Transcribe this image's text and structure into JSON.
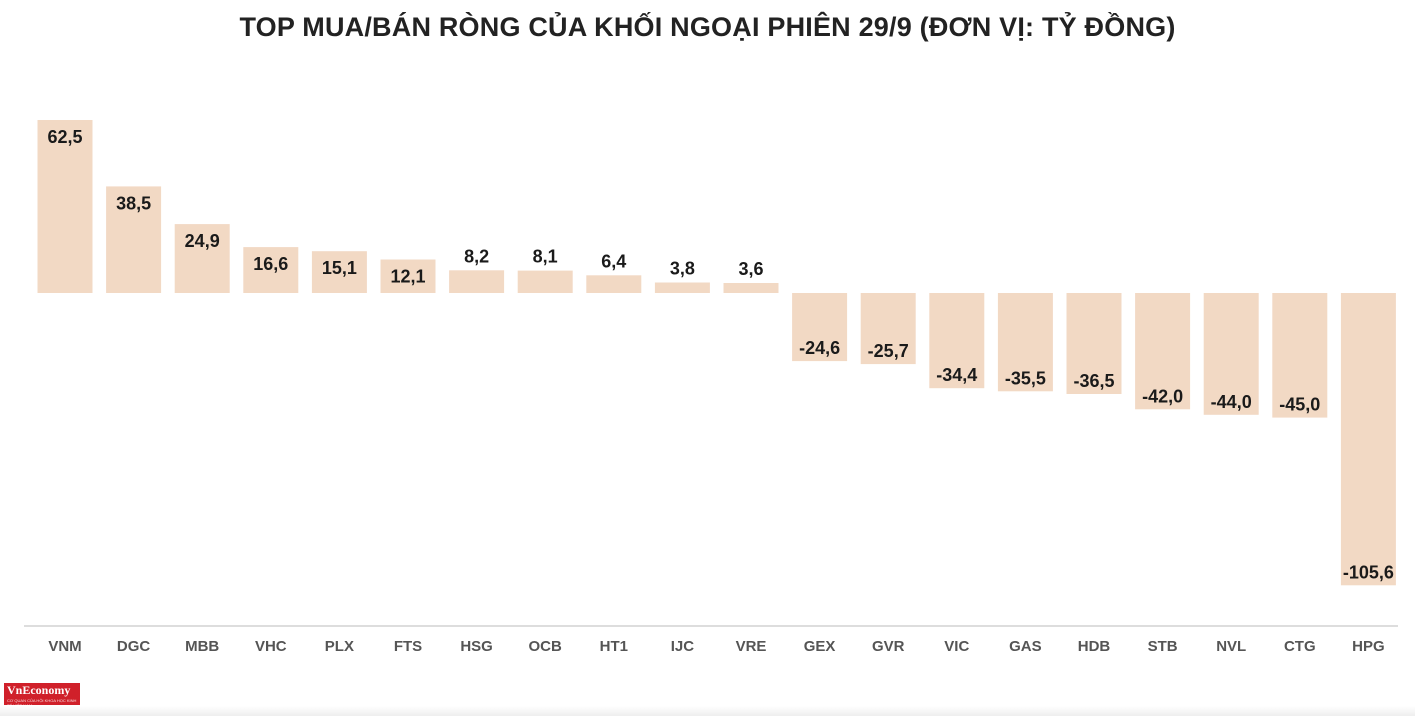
{
  "title": "TOP MUA/BÁN RÒNG CỦA KHỐI NGOẠI PHIÊN 29/9 (ĐƠN VỊ: TỶ ĐỒNG)",
  "logo": {
    "text": "VnEconomy",
    "subtext": "CƠ QUAN CỦA HỘI KHOA HỌC KINH TẾ VIỆT NAM"
  },
  "colors": {
    "bar": "#f2d9c4",
    "axis": "#bbbbbb",
    "label": "#1a1a1a",
    "category": "#555555",
    "title": "#222222"
  },
  "chart_data": {
    "type": "bar",
    "title": "TOP MUA/BÁN RÒNG CỦA KHỐI NGOẠI PHIÊN 29/9 (ĐƠN VỊ: TỶ ĐỒNG)",
    "categories": [
      "VNM",
      "DGC",
      "MBB",
      "VHC",
      "PLX",
      "FTS",
      "HSG",
      "OCB",
      "HT1",
      "IJC",
      "VRE",
      "GEX",
      "GVR",
      "VIC",
      "GAS",
      "HDB",
      "STB",
      "NVL",
      "CTG",
      "HPG"
    ],
    "values": [
      62.5,
      38.5,
      24.9,
      16.6,
      15.1,
      12.1,
      8.2,
      8.1,
      6.4,
      3.8,
      3.6,
      -24.6,
      -25.7,
      -34.4,
      -35.5,
      -36.5,
      -42.0,
      -44.0,
      -45.0,
      -105.6
    ],
    "value_labels": [
      "62,5",
      "38,5",
      "24,9",
      "16,6",
      "15,1",
      "12,1",
      "8,2",
      "8,1",
      "6,4",
      "3,8",
      "3,6",
      "-24,6",
      "-25,7",
      "-34,4",
      "-35,5",
      "-36,5",
      "-42,0",
      "-44,0",
      "-45,0",
      "-105,6"
    ],
    "xlabel": "",
    "ylabel": "",
    "ylim": [
      -105.6,
      62.5
    ],
    "grid": false,
    "legend": "none"
  }
}
